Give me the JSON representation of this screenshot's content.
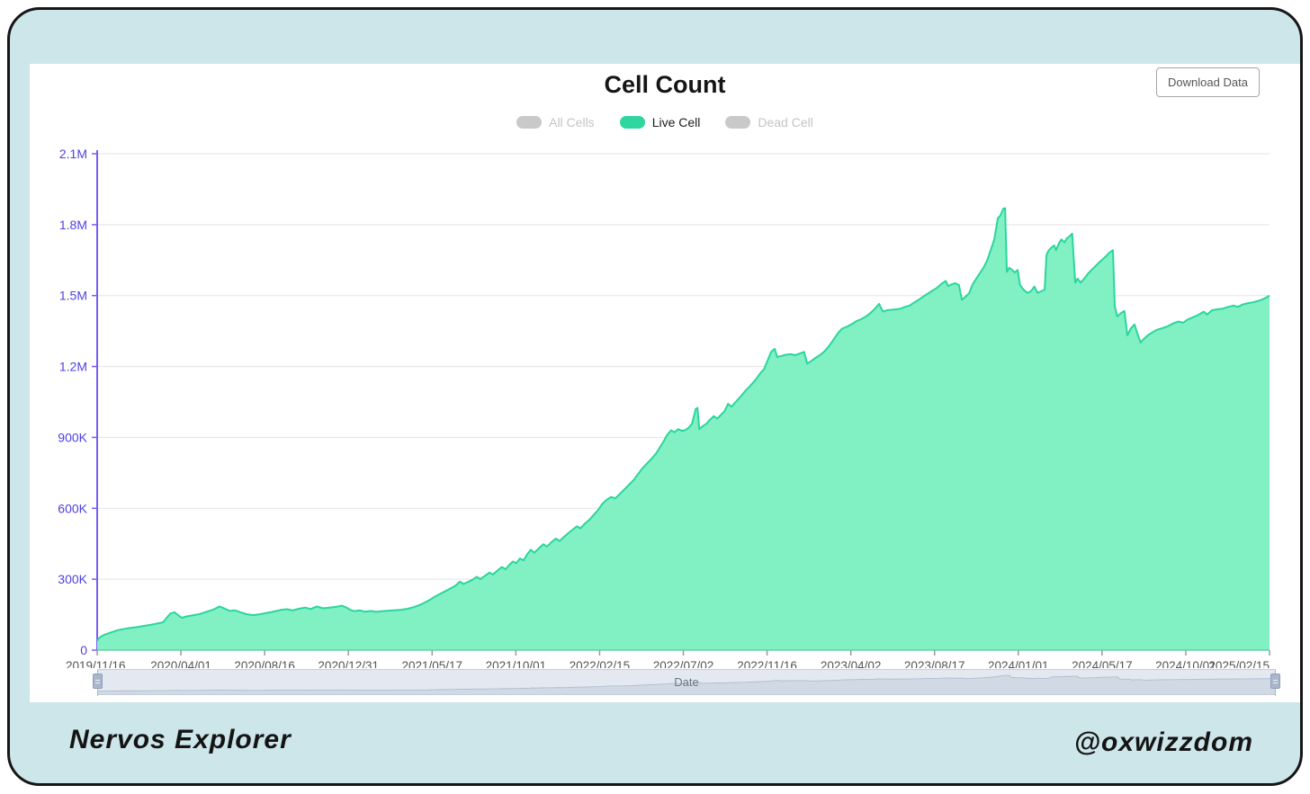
{
  "header": {
    "title": "Cell Count",
    "download_button_label": "Download Data"
  },
  "footer": {
    "left_text": "Nervos Explorer",
    "right_text": "@oxwizzdom"
  },
  "colors": {
    "frame_bg": "#cde6ea",
    "accent_green": "#2fd6a0",
    "area_fill": "#81f0c3",
    "area_line": "#2bd69d",
    "axis_purple": "#7a5cf5",
    "y_label_purple": "#4f42e0",
    "gridline": "#e3e3e6",
    "x_label_gray": "#555555",
    "inactive_gray": "#c9c9c9"
  },
  "chart_data": {
    "type": "area",
    "title": "Cell Count",
    "xlabel": "Date",
    "ylabel": "",
    "grid": true,
    "legend_position": "top",
    "legend": [
      {
        "label": "All Cells",
        "active": false
      },
      {
        "label": "Live Cell",
        "active": true
      },
      {
        "label": "Dead Cell",
        "active": false
      }
    ],
    "ylim_thousands": [
      0,
      2100
    ],
    "y_ticks": [
      {
        "label": "2.1M",
        "value": 2100
      },
      {
        "label": "1.8M",
        "value": 1800
      },
      {
        "label": "1.5M",
        "value": 1500
      },
      {
        "label": "1.2M",
        "value": 1200
      },
      {
        "label": "900K",
        "value": 900
      },
      {
        "label": "600K",
        "value": 600
      },
      {
        "label": "300K",
        "value": 300
      },
      {
        "label": "0",
        "value": 0
      }
    ],
    "x_tick_labels": [
      "2019/11/16",
      "2020/04/01",
      "2020/08/16",
      "2020/12/31",
      "2021/05/17",
      "2021/10/01",
      "2022/02/15",
      "2022/07/02",
      "2022/11/16",
      "2023/04/02",
      "2023/08/17",
      "2024/01/01",
      "2024/05/17",
      "2024/10/01",
      "2025/02/15"
    ],
    "x_unit": "days since 2019/11/16",
    "x_span_days": 1955,
    "series": [
      {
        "name": "Live Cell",
        "unit": "cells (thousands)",
        "points": [
          [
            0,
            40
          ],
          [
            5,
            55
          ],
          [
            12,
            65
          ],
          [
            23,
            75
          ],
          [
            35,
            85
          ],
          [
            50,
            92
          ],
          [
            65,
            97
          ],
          [
            80,
            103
          ],
          [
            95,
            110
          ],
          [
            110,
            118
          ],
          [
            122,
            155
          ],
          [
            129,
            160
          ],
          [
            135,
            148
          ],
          [
            141,
            137
          ],
          [
            150,
            143
          ],
          [
            161,
            148
          ],
          [
            171,
            153
          ],
          [
            183,
            163
          ],
          [
            194,
            172
          ],
          [
            204,
            185
          ],
          [
            212,
            176
          ],
          [
            221,
            166
          ],
          [
            230,
            168
          ],
          [
            239,
            160
          ],
          [
            249,
            152
          ],
          [
            260,
            148
          ],
          [
            272,
            152
          ],
          [
            284,
            158
          ],
          [
            296,
            164
          ],
          [
            306,
            170
          ],
          [
            317,
            173
          ],
          [
            326,
            168
          ],
          [
            336,
            175
          ],
          [
            347,
            180
          ],
          [
            356,
            174
          ],
          [
            366,
            185
          ],
          [
            377,
            177
          ],
          [
            387,
            180
          ],
          [
            398,
            183
          ],
          [
            408,
            188
          ],
          [
            416,
            180
          ],
          [
            422,
            170
          ],
          [
            429,
            165
          ],
          [
            438,
            168
          ],
          [
            447,
            163
          ],
          [
            456,
            166
          ],
          [
            465,
            162
          ],
          [
            476,
            165
          ],
          [
            486,
            167
          ],
          [
            497,
            169
          ],
          [
            507,
            171
          ],
          [
            518,
            175
          ],
          [
            528,
            182
          ],
          [
            539,
            192
          ],
          [
            549,
            205
          ],
          [
            557,
            216
          ],
          [
            563,
            226
          ],
          [
            572,
            238
          ],
          [
            581,
            250
          ],
          [
            590,
            262
          ],
          [
            597,
            272
          ],
          [
            605,
            290
          ],
          [
            611,
            280
          ],
          [
            618,
            288
          ],
          [
            626,
            298
          ],
          [
            633,
            310
          ],
          [
            639,
            300
          ],
          [
            647,
            315
          ],
          [
            654,
            328
          ],
          [
            660,
            320
          ],
          [
            668,
            338
          ],
          [
            675,
            352
          ],
          [
            681,
            342
          ],
          [
            687,
            360
          ],
          [
            693,
            375
          ],
          [
            699,
            368
          ],
          [
            705,
            388
          ],
          [
            711,
            380
          ],
          [
            717,
            405
          ],
          [
            723,
            425
          ],
          [
            729,
            412
          ],
          [
            737,
            432
          ],
          [
            744,
            448
          ],
          [
            750,
            438
          ],
          [
            758,
            458
          ],
          [
            765,
            472
          ],
          [
            771,
            462
          ],
          [
            779,
            480
          ],
          [
            786,
            496
          ],
          [
            794,
            512
          ],
          [
            800,
            524
          ],
          [
            806,
            515
          ],
          [
            813,
            535
          ],
          [
            821,
            552
          ],
          [
            828,
            572
          ],
          [
            836,
            595
          ],
          [
            842,
            618
          ],
          [
            849,
            635
          ],
          [
            857,
            648
          ],
          [
            864,
            642
          ],
          [
            872,
            662
          ],
          [
            879,
            680
          ],
          [
            887,
            700
          ],
          [
            894,
            718
          ],
          [
            902,
            745
          ],
          [
            909,
            768
          ],
          [
            917,
            790
          ],
          [
            924,
            808
          ],
          [
            932,
            832
          ],
          [
            939,
            860
          ],
          [
            945,
            885
          ],
          [
            951,
            912
          ],
          [
            957,
            930
          ],
          [
            963,
            922
          ],
          [
            969,
            935
          ],
          [
            975,
            928
          ],
          [
            980,
            930
          ],
          [
            986,
            940
          ],
          [
            992,
            958
          ],
          [
            998,
            1020
          ],
          [
            1001,
            1025
          ],
          [
            1004,
            935
          ],
          [
            1010,
            948
          ],
          [
            1016,
            958
          ],
          [
            1022,
            975
          ],
          [
            1028,
            990
          ],
          [
            1034,
            980
          ],
          [
            1040,
            995
          ],
          [
            1046,
            1010
          ],
          [
            1052,
            1042
          ],
          [
            1058,
            1030
          ],
          [
            1064,
            1048
          ],
          [
            1070,
            1065
          ],
          [
            1076,
            1082
          ],
          [
            1082,
            1100
          ],
          [
            1088,
            1115
          ],
          [
            1094,
            1132
          ],
          [
            1100,
            1150
          ],
          [
            1106,
            1172
          ],
          [
            1112,
            1188
          ],
          [
            1118,
            1225
          ],
          [
            1124,
            1262
          ],
          [
            1130,
            1275
          ],
          [
            1134,
            1240
          ],
          [
            1142,
            1245
          ],
          [
            1149,
            1250
          ],
          [
            1157,
            1252
          ],
          [
            1164,
            1248
          ],
          [
            1172,
            1255
          ],
          [
            1179,
            1262
          ],
          [
            1184,
            1212
          ],
          [
            1190,
            1222
          ],
          [
            1197,
            1235
          ],
          [
            1205,
            1248
          ],
          [
            1212,
            1262
          ],
          [
            1220,
            1285
          ],
          [
            1227,
            1310
          ],
          [
            1235,
            1340
          ],
          [
            1242,
            1360
          ],
          [
            1250,
            1368
          ],
          [
            1259,
            1380
          ],
          [
            1266,
            1392
          ],
          [
            1274,
            1400
          ],
          [
            1281,
            1410
          ],
          [
            1289,
            1425
          ],
          [
            1296,
            1442
          ],
          [
            1304,
            1465
          ],
          [
            1307,
            1448
          ],
          [
            1311,
            1432
          ],
          [
            1317,
            1438
          ],
          [
            1325,
            1440
          ],
          [
            1332,
            1442
          ],
          [
            1340,
            1445
          ],
          [
            1347,
            1452
          ],
          [
            1355,
            1458
          ],
          [
            1362,
            1470
          ],
          [
            1370,
            1482
          ],
          [
            1377,
            1495
          ],
          [
            1385,
            1508
          ],
          [
            1392,
            1520
          ],
          [
            1400,
            1532
          ],
          [
            1407,
            1548
          ],
          [
            1415,
            1562
          ],
          [
            1419,
            1540
          ],
          [
            1425,
            1548
          ],
          [
            1431,
            1552
          ],
          [
            1437,
            1545
          ],
          [
            1442,
            1482
          ],
          [
            1448,
            1495
          ],
          [
            1454,
            1510
          ],
          [
            1460,
            1548
          ],
          [
            1466,
            1572
          ],
          [
            1472,
            1595
          ],
          [
            1478,
            1618
          ],
          [
            1484,
            1648
          ],
          [
            1490,
            1692
          ],
          [
            1496,
            1738
          ],
          [
            1502,
            1828
          ],
          [
            1506,
            1838
          ],
          [
            1511,
            1868
          ],
          [
            1514,
            1870
          ],
          [
            1517,
            1600
          ],
          [
            1521,
            1618
          ],
          [
            1526,
            1608
          ],
          [
            1530,
            1598
          ],
          [
            1535,
            1608
          ],
          [
            1539,
            1545
          ],
          [
            1545,
            1525
          ],
          [
            1551,
            1512
          ],
          [
            1557,
            1518
          ],
          [
            1563,
            1538
          ],
          [
            1568,
            1512
          ],
          [
            1574,
            1518
          ],
          [
            1580,
            1525
          ],
          [
            1583,
            1672
          ],
          [
            1587,
            1692
          ],
          [
            1592,
            1705
          ],
          [
            1596,
            1712
          ],
          [
            1599,
            1692
          ],
          [
            1604,
            1722
          ],
          [
            1608,
            1738
          ],
          [
            1613,
            1725
          ],
          [
            1617,
            1742
          ],
          [
            1622,
            1752
          ],
          [
            1626,
            1762
          ],
          [
            1631,
            1555
          ],
          [
            1635,
            1572
          ],
          [
            1640,
            1555
          ],
          [
            1646,
            1572
          ],
          [
            1652,
            1592
          ],
          [
            1658,
            1608
          ],
          [
            1664,
            1622
          ],
          [
            1670,
            1638
          ],
          [
            1676,
            1652
          ],
          [
            1682,
            1665
          ],
          [
            1688,
            1682
          ],
          [
            1694,
            1692
          ],
          [
            1697,
            1455
          ],
          [
            1701,
            1412
          ],
          [
            1707,
            1425
          ],
          [
            1713,
            1435
          ],
          [
            1718,
            1332
          ],
          [
            1724,
            1362
          ],
          [
            1730,
            1378
          ],
          [
            1734,
            1345
          ],
          [
            1740,
            1302
          ],
          [
            1746,
            1318
          ],
          [
            1752,
            1332
          ],
          [
            1760,
            1345
          ],
          [
            1767,
            1355
          ],
          [
            1776,
            1362
          ],
          [
            1785,
            1370
          ],
          [
            1794,
            1382
          ],
          [
            1803,
            1390
          ],
          [
            1811,
            1385
          ],
          [
            1818,
            1398
          ],
          [
            1827,
            1408
          ],
          [
            1836,
            1418
          ],
          [
            1845,
            1432
          ],
          [
            1851,
            1420
          ],
          [
            1859,
            1438
          ],
          [
            1868,
            1442
          ],
          [
            1877,
            1445
          ],
          [
            1886,
            1452
          ],
          [
            1895,
            1458
          ],
          [
            1902,
            1452
          ],
          [
            1910,
            1462
          ],
          [
            1919,
            1468
          ],
          [
            1928,
            1472
          ],
          [
            1937,
            1478
          ],
          [
            1944,
            1485
          ],
          [
            1952,
            1495
          ],
          [
            1955,
            1500
          ]
        ]
      }
    ]
  }
}
